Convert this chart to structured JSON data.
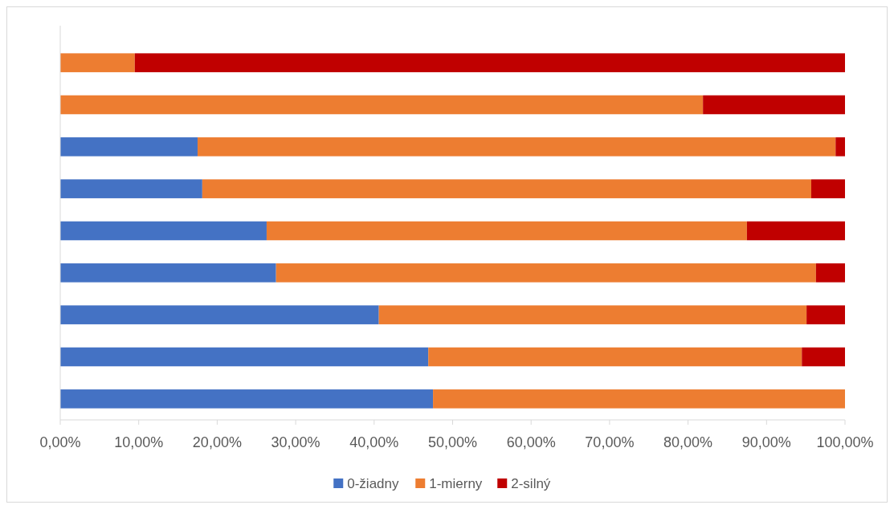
{
  "chart_data": {
    "type": "bar",
    "orientation": "horizontal",
    "stacked": true,
    "categories": [
      null,
      null,
      null,
      null,
      null,
      null,
      null,
      null,
      null
    ],
    "series": [
      {
        "name": "0-žiadny",
        "color": "#4472c4",
        "values": [
          0,
          0,
          17.5,
          18.1,
          26.3,
          27.5,
          40.6,
          46.9,
          47.5
        ]
      },
      {
        "name": "1-mierny",
        "color": "#ed7d31",
        "values": [
          9.5,
          81.9,
          81.3,
          77.6,
          61.2,
          68.8,
          54.5,
          47.6,
          52.5
        ]
      },
      {
        "name": "2-silný",
        "color": "#c00000",
        "values": [
          90.5,
          18.1,
          1.2,
          4.3,
          12.5,
          3.7,
          4.9,
          5.5,
          0
        ]
      }
    ],
    "xlim": [
      0,
      100
    ],
    "xticks": [
      {
        "value": 0,
        "label": "0,00%"
      },
      {
        "value": 10,
        "label": "10,00%"
      },
      {
        "value": 20,
        "label": "20,00%"
      },
      {
        "value": 30,
        "label": "30,00%"
      },
      {
        "value": 40,
        "label": "40,00%"
      },
      {
        "value": 50,
        "label": "50,00%"
      },
      {
        "value": 60,
        "label": "60,00%"
      },
      {
        "value": 70,
        "label": "70,00%"
      },
      {
        "value": 80,
        "label": "80,00%"
      },
      {
        "value": 90,
        "label": "90,00%"
      },
      {
        "value": 100,
        "label": "100,00%"
      }
    ],
    "legend": "bottom"
  }
}
